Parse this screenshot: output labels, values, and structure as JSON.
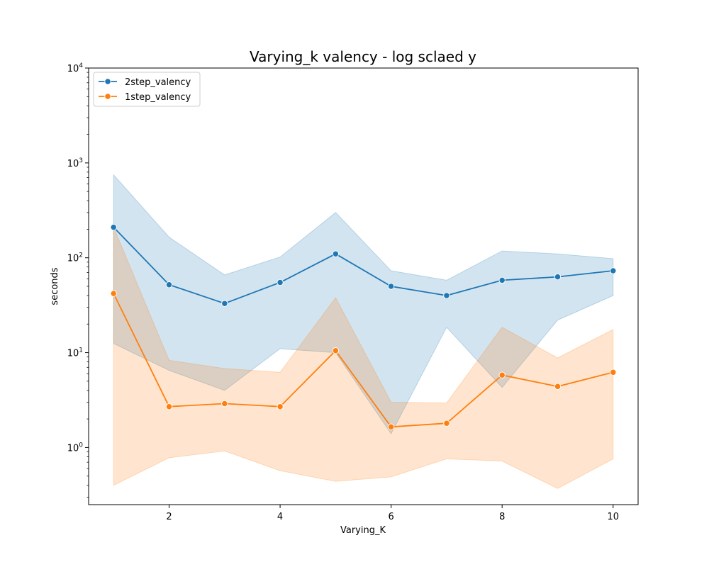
{
  "chart_data": {
    "type": "line",
    "title": "Varying_k valency - log sclaed y",
    "xlabel": "Varying_K",
    "ylabel": "seconds",
    "x_scale": "linear",
    "y_scale": "log",
    "xlim": [
      0.55,
      10.45
    ],
    "ylim": [
      0.25,
      10000
    ],
    "x_ticks": [
      2,
      4,
      6,
      8,
      10
    ],
    "y_ticks": [
      1,
      10,
      100,
      1000,
      10000
    ],
    "y_tick_labels": [
      {
        "base": "10",
        "exp": "0"
      },
      {
        "base": "10",
        "exp": "1"
      },
      {
        "base": "10",
        "exp": "2"
      },
      {
        "base": "10",
        "exp": "3"
      },
      {
        "base": "10",
        "exp": "4"
      }
    ],
    "grid": false,
    "legend_position": "top-left",
    "x": [
      1,
      2,
      3,
      4,
      5,
      6,
      7,
      8,
      9,
      10
    ],
    "series": [
      {
        "name": "2step_valency",
        "color": "#1f77b4",
        "values": [
          210,
          52,
          33,
          55,
          110,
          50,
          40,
          58,
          63,
          73
        ],
        "ci_upper": [
          750,
          165,
          66,
          102,
          300,
          73,
          58,
          118,
          110,
          98
        ],
        "ci_lower": [
          12.5,
          6.5,
          4.0,
          11.0,
          10.0,
          1.4,
          18.5,
          4.3,
          22,
          40
        ]
      },
      {
        "name": "1step_valency",
        "color": "#ff7f0e",
        "values": [
          42,
          2.7,
          2.9,
          2.7,
          10.5,
          1.65,
          1.8,
          5.8,
          4.4,
          6.2
        ],
        "ci_upper": [
          210,
          8.3,
          6.8,
          6.2,
          38,
          3.0,
          2.95,
          18.5,
          8.8,
          17.5
        ],
        "ci_lower": [
          0.4,
          0.78,
          0.92,
          0.57,
          0.44,
          0.49,
          0.76,
          0.72,
          0.37,
          0.76
        ]
      }
    ]
  }
}
